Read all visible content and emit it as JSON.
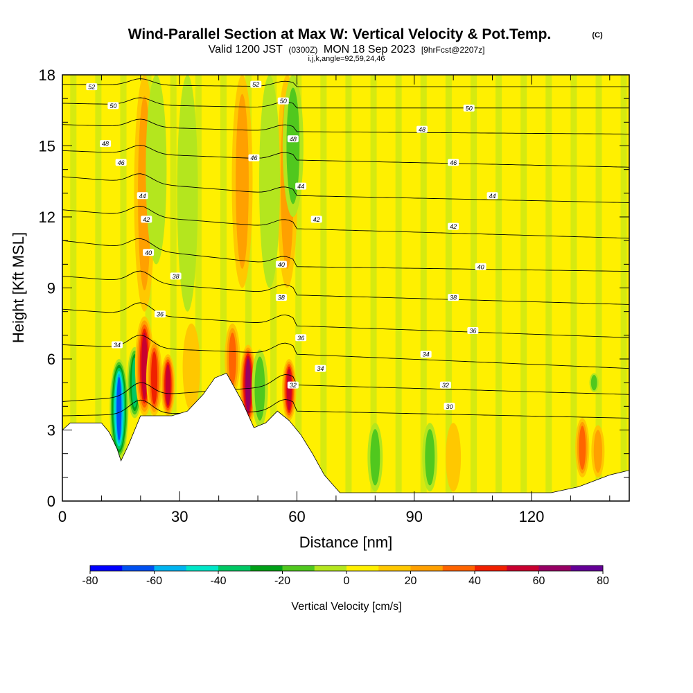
{
  "header": {
    "title_main": "Wind-Parallel Section at Max W: Vertical Velocity & Pot.Temp.",
    "title_mark": "(C)",
    "valid_prefix": "Valid 1200 JST",
    "valid_utc": "(0300Z)",
    "valid_date": "MON 18 Sep 2023",
    "forecast": "[9hrFcst@2207z]",
    "indices": "i,j,k,angle=92,59,24,46"
  },
  "chart_data": {
    "type": "heatmap",
    "xlabel": "Distance [nm]",
    "ylabel": "Height [Kft MSL]",
    "xlim": [
      0,
      145
    ],
    "ylim": [
      0,
      18
    ],
    "x_ticks": [
      0,
      30,
      60,
      90,
      120
    ],
    "y_ticks": [
      0,
      3,
      6,
      9,
      12,
      15,
      18
    ],
    "colorbar": {
      "label": "Vertical Velocity [cm/s]",
      "min": -80,
      "max": 80,
      "step": 10,
      "tick_labels": [
        -80,
        -60,
        -40,
        -20,
        0,
        20,
        40,
        60,
        80
      ],
      "colors": [
        "#0000ff",
        "#0050f0",
        "#00b4f0",
        "#00e6c8",
        "#00c864",
        "#00a018",
        "#50c81e",
        "#b4e61e",
        "#fff000",
        "#ffc800",
        "#ffa000",
        "#ff6400",
        "#f02000",
        "#c80030",
        "#960064",
        "#640096"
      ]
    },
    "terrain_heights_kft": [
      [
        0,
        3.0
      ],
      [
        2,
        3.3
      ],
      [
        10,
        3.3
      ],
      [
        12,
        2.9
      ],
      [
        14,
        2.2
      ],
      [
        15,
        1.7
      ],
      [
        17,
        2.4
      ],
      [
        20,
        3.6
      ],
      [
        28,
        3.6
      ],
      [
        32,
        3.8
      ],
      [
        36,
        4.5
      ],
      [
        39,
        5.2
      ],
      [
        42,
        5.4
      ],
      [
        46,
        4.2
      ],
      [
        49,
        3.1
      ],
      [
        52,
        3.3
      ],
      [
        55,
        3.8
      ],
      [
        58,
        3.4
      ],
      [
        61,
        2.8
      ],
      [
        64,
        2.0
      ],
      [
        67,
        1.1
      ],
      [
        71,
        0.35
      ],
      [
        100,
        0.35
      ],
      [
        110,
        0.35
      ],
      [
        125,
        0.35
      ],
      [
        132,
        0.6
      ],
      [
        140,
        1.1
      ],
      [
        145,
        1.3
      ]
    ],
    "vertical_velocity_features": [
      {
        "x": 14.5,
        "z_bottom": 1.8,
        "z_top": 6.0,
        "w": -70
      },
      {
        "x": 18.5,
        "z_bottom": 3.5,
        "z_top": 6.5,
        "w": -40
      },
      {
        "x": 21,
        "z_bottom": 3.6,
        "z_top": 7.8,
        "w": 55
      },
      {
        "x": 23.5,
        "z_bottom": 3.6,
        "z_top": 6.8,
        "w": 45
      },
      {
        "x": 27,
        "z_bottom": 3.6,
        "z_top": 6.2,
        "w": 50
      },
      {
        "x": 33,
        "z_bottom": 3.8,
        "z_top": 7.5,
        "w": 15
      },
      {
        "x": 43.5,
        "z_bottom": 4.5,
        "z_top": 7.5,
        "w": 35
      },
      {
        "x": 47.5,
        "z_bottom": 3.2,
        "z_top": 6.6,
        "w": 60
      },
      {
        "x": 50.5,
        "z_bottom": 3.1,
        "z_top": 6.4,
        "w": -25
      },
      {
        "x": 58,
        "z_bottom": 3.4,
        "z_top": 6.0,
        "w": 55
      },
      {
        "x": 57.5,
        "z_bottom": 9.0,
        "z_top": 18,
        "w": 25
      },
      {
        "x": 59,
        "z_bottom": 12,
        "z_top": 18,
        "w": -25
      },
      {
        "x": 21,
        "z_bottom": 8,
        "z_top": 18,
        "w": 20
      },
      {
        "x": 24,
        "z_bottom": 10,
        "z_top": 18,
        "w": -15
      },
      {
        "x": 32,
        "z_bottom": 8,
        "z_top": 18,
        "w": -15
      },
      {
        "x": 46,
        "z_bottom": 9,
        "z_top": 18,
        "w": 20
      },
      {
        "x": 53,
        "z_bottom": 9,
        "z_top": 18,
        "w": -15
      },
      {
        "x": 80,
        "z_bottom": 0.4,
        "z_top": 3.3,
        "w": -25
      },
      {
        "x": 94,
        "z_bottom": 0.4,
        "z_top": 3.3,
        "w": -20
      },
      {
        "x": 100,
        "z_bottom": 0.4,
        "z_top": 3.3,
        "w": 10
      },
      {
        "x": 133,
        "z_bottom": 1.0,
        "z_top": 3.5,
        "w": 35
      },
      {
        "x": 137,
        "z_bottom": 1.0,
        "z_top": 3.2,
        "w": 20
      },
      {
        "x": 136,
        "z_bottom": 4.6,
        "z_top": 5.4,
        "w": -20
      }
    ],
    "pot_temp_contours": [
      {
        "level": 30,
        "label": "30",
        "z_left": 3.6,
        "z_mid": 3.8,
        "z_right": 3.5
      },
      {
        "level": 32,
        "label": "32",
        "z_left": 4.2,
        "z_mid": 4.9,
        "z_right": 4.5
      },
      {
        "level": 34,
        "label": "34",
        "z_left": 6.6,
        "z_mid": 6.2,
        "z_right": 5.6
      },
      {
        "level": 36,
        "label": "36",
        "z_left": 8.1,
        "z_mid": 7.4,
        "z_right": 6.9
      },
      {
        "level": 38,
        "label": "38",
        "z_left": 9.5,
        "z_mid": 8.7,
        "z_right": 8.3
      },
      {
        "level": 40,
        "label": "40",
        "z_left": 11.0,
        "z_mid": 9.9,
        "z_right": 9.7
      },
      {
        "level": 42,
        "label": "42",
        "z_left": 12.3,
        "z_mid": 11.5,
        "z_right": 11.1
      },
      {
        "level": 44,
        "label": "44",
        "z_left": 13.7,
        "z_mid": 12.9,
        "z_right": 12.6
      },
      {
        "level": 46,
        "label": "46",
        "z_left": 14.8,
        "z_mid": 14.4,
        "z_right": 14.1
      },
      {
        "level": 48,
        "label": "48",
        "z_left": 15.9,
        "z_mid": 15.6,
        "z_right": 15.5
      },
      {
        "level": 50,
        "label": "50",
        "z_left": 16.8,
        "z_mid": 16.6,
        "z_right": 16.6
      },
      {
        "level": 52,
        "label": "52",
        "z_left": 17.6,
        "z_mid": 17.5,
        "z_right": 17.5
      }
    ],
    "contour_labels": [
      {
        "text": "52",
        "x": 7.5,
        "z": 17.5
      },
      {
        "text": "52",
        "x": 49.5,
        "z": 17.6
      },
      {
        "text": "50",
        "x": 13,
        "z": 16.7
      },
      {
        "text": "50",
        "x": 56.5,
        "z": 16.9
      },
      {
        "text": "50",
        "x": 104,
        "z": 16.6
      },
      {
        "text": "48",
        "x": 11,
        "z": 15.1
      },
      {
        "text": "48",
        "x": 59,
        "z": 15.3
      },
      {
        "text": "48",
        "x": 92,
        "z": 15.7
      },
      {
        "text": "46",
        "x": 15,
        "z": 14.3
      },
      {
        "text": "46",
        "x": 49,
        "z": 14.5
      },
      {
        "text": "46",
        "x": 100,
        "z": 14.3
      },
      {
        "text": "44",
        "x": 20.5,
        "z": 12.9
      },
      {
        "text": "44",
        "x": 61,
        "z": 13.3
      },
      {
        "text": "44",
        "x": 110,
        "z": 12.9
      },
      {
        "text": "42",
        "x": 21.5,
        "z": 11.9
      },
      {
        "text": "42",
        "x": 65,
        "z": 11.9
      },
      {
        "text": "42",
        "x": 100,
        "z": 11.6
      },
      {
        "text": "40",
        "x": 22,
        "z": 10.5
      },
      {
        "text": "40",
        "x": 56,
        "z": 10.0
      },
      {
        "text": "40",
        "x": 107,
        "z": 9.9
      },
      {
        "text": "38",
        "x": 29,
        "z": 9.5
      },
      {
        "text": "38",
        "x": 56,
        "z": 8.6
      },
      {
        "text": "38",
        "x": 100,
        "z": 8.6
      },
      {
        "text": "36",
        "x": 25,
        "z": 7.9
      },
      {
        "text": "36",
        "x": 61,
        "z": 6.9
      },
      {
        "text": "36",
        "x": 105,
        "z": 7.2
      },
      {
        "text": "34",
        "x": 14,
        "z": 6.6
      },
      {
        "text": "34",
        "x": 66,
        "z": 5.6
      },
      {
        "text": "34",
        "x": 93,
        "z": 6.2
      },
      {
        "text": "32",
        "x": 59,
        "z": 4.9
      },
      {
        "text": "32",
        "x": 98,
        "z": 4.9
      },
      {
        "text": "30",
        "x": 99,
        "z": 4.0
      }
    ]
  }
}
